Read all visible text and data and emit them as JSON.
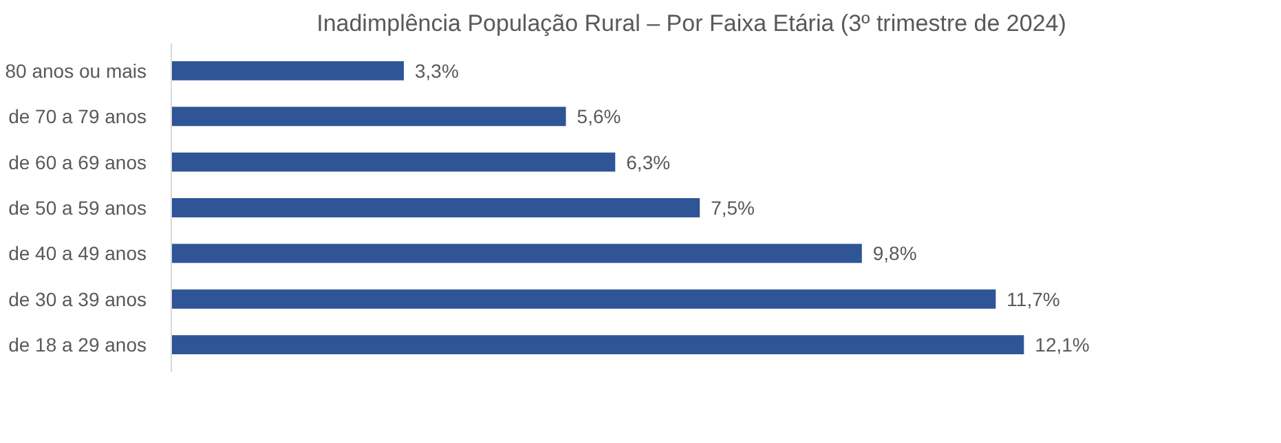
{
  "chart_data": {
    "type": "bar",
    "orientation": "horizontal",
    "title": "Inadimplência População Rural – Por Faixa Etária (3º trimestre de 2024)",
    "categories": [
      "80 anos ou mais",
      "de 70 a 79 anos",
      "de 60 a 69 anos",
      "de 50 a 59 anos",
      "de 40 a 49 anos",
      "de 30 a 39 anos",
      "de 18 a 29 anos"
    ],
    "values": [
      3.3,
      5.6,
      6.3,
      7.5,
      9.8,
      11.7,
      12.1
    ],
    "value_labels": [
      "3,3%",
      "5,6%",
      "6,3%",
      "7,5%",
      "9,8%",
      "11,7%",
      "12,1%"
    ],
    "color": "#2f5597",
    "grid": false
  }
}
